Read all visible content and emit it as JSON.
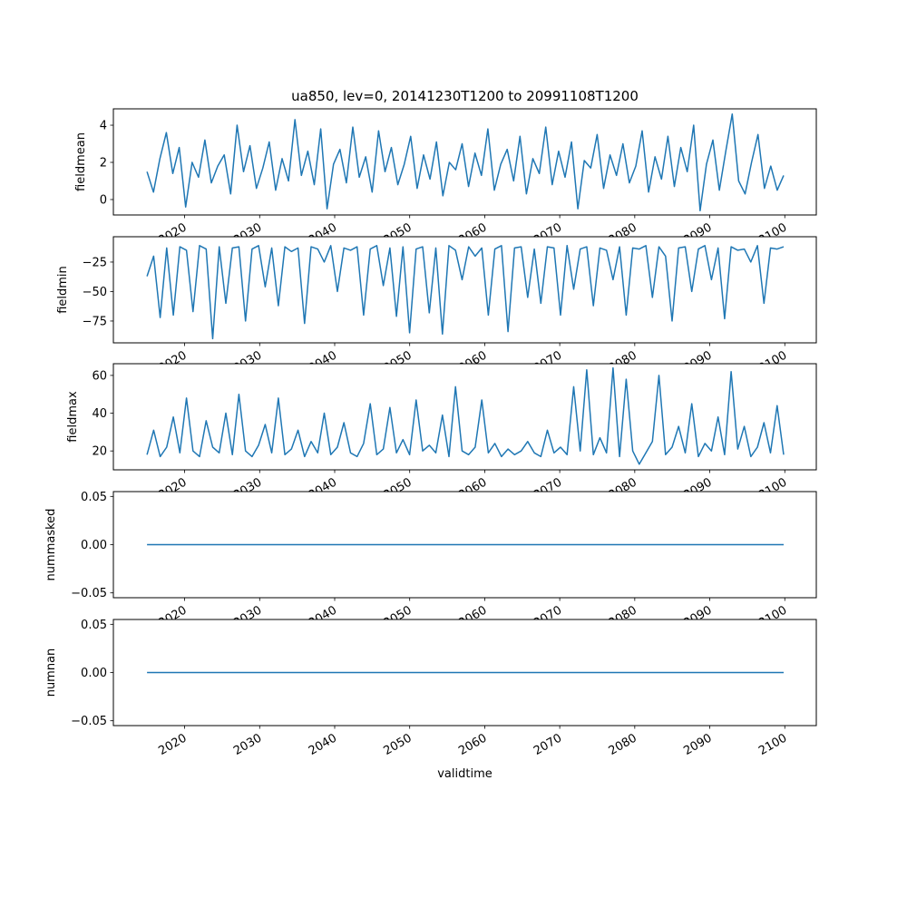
{
  "chart_data": {
    "type": "line",
    "title": "ua850, lev=0, 20141230T1200 to 20991108T1200",
    "xlabel": "validtime",
    "x_start": 2014.99,
    "x_end": 2099.85,
    "xlim": [
      2010.5,
      2104.2
    ],
    "xticks": [
      2020,
      2030,
      2040,
      2050,
      2060,
      2070,
      2080,
      2090,
      2100
    ],
    "xtick_labels": [
      "2020",
      "2030",
      "2040",
      "2050",
      "2060",
      "2070",
      "2080",
      "2090",
      "2100"
    ],
    "line_color": "#1f77b4",
    "grid": false,
    "panels": [
      {
        "ylabel": "fieldmean",
        "ylim": [
          -0.83,
          4.88
        ],
        "yticks": [
          0,
          2,
          4
        ],
        "ytick_labels": [
          "0",
          "2",
          "4"
        ],
        "values": [
          1.5,
          0.4,
          2.2,
          3.6,
          1.4,
          2.8,
          -0.4,
          2.0,
          1.2,
          3.2,
          0.9,
          1.8,
          2.4,
          0.3,
          4.0,
          1.5,
          2.9,
          0.6,
          1.7,
          3.1,
          0.5,
          2.2,
          1.0,
          4.3,
          1.3,
          2.6,
          0.8,
          3.8,
          -0.5,
          1.9,
          2.7,
          0.9,
          3.9,
          1.2,
          2.3,
          0.4,
          3.7,
          1.5,
          2.8,
          0.8,
          1.9,
          3.4,
          0.6,
          2.4,
          1.1,
          3.1,
          0.2,
          2.0,
          1.6,
          3.0,
          0.7,
          2.5,
          1.3,
          3.8,
          0.5,
          1.9,
          2.7,
          1.0,
          3.4,
          0.3,
          2.2,
          1.4,
          3.9,
          0.8,
          2.6,
          1.2,
          3.1,
          -0.5,
          2.1,
          1.7,
          3.5,
          0.6,
          2.4,
          1.3,
          3.0,
          0.9,
          1.8,
          3.7,
          0.4,
          2.3,
          1.1,
          3.4,
          0.7,
          2.8,
          1.5,
          4.0,
          -0.6,
          1.9,
          3.2,
          0.5,
          2.6,
          4.6,
          1.0,
          0.3,
          2.0,
          3.5,
          0.6,
          1.8,
          0.5,
          1.3
        ]
      },
      {
        "ylabel": "fieldmin",
        "ylim": [
          -93.5,
          -3.5
        ],
        "yticks": [
          -25,
          -50,
          -75
        ],
        "ytick_labels": [
          "−25",
          "−50",
          "−75"
        ],
        "values": [
          -37,
          -20,
          -72,
          -13,
          -70,
          -12,
          -15,
          -67,
          -11,
          -14,
          -90,
          -12,
          -60,
          -13,
          -12,
          -75,
          -14,
          -11,
          -46,
          -13,
          -62,
          -12,
          -16,
          -13,
          -77,
          -12,
          -14,
          -25,
          -11,
          -50,
          -13,
          -15,
          -12,
          -70,
          -14,
          -11,
          -45,
          -13,
          -71,
          -12,
          -85,
          -14,
          -12,
          -68,
          -13,
          -86,
          -11,
          -15,
          -40,
          -12,
          -20,
          -13,
          -70,
          -14,
          -11,
          -84,
          -13,
          -12,
          -55,
          -14,
          -60,
          -12,
          -13,
          -70,
          -11,
          -48,
          -14,
          -12,
          -62,
          -13,
          -15,
          -40,
          -12,
          -70,
          -13,
          -14,
          -11,
          -55,
          -12,
          -20,
          -75,
          -13,
          -12,
          -50,
          -14,
          -11,
          -40,
          -13,
          -73,
          -12,
          -15,
          -14,
          -25,
          -11,
          -60,
          -13,
          -14,
          -12
        ]
      },
      {
        "ylabel": "fieldmax",
        "ylim": [
          10,
          66.2
        ],
        "yticks": [
          20,
          40,
          60
        ],
        "ytick_labels": [
          "20",
          "40",
          "60"
        ],
        "values": [
          18,
          31,
          17,
          22,
          38,
          19,
          48,
          20,
          17,
          36,
          22,
          19,
          40,
          18,
          50,
          20,
          17,
          23,
          34,
          19,
          48,
          18,
          21,
          31,
          17,
          25,
          19,
          40,
          18,
          22,
          35,
          19,
          17,
          24,
          45,
          18,
          21,
          43,
          19,
          26,
          18,
          47,
          20,
          23,
          19,
          39,
          17,
          54,
          20,
          18,
          22,
          47,
          19,
          24,
          17,
          21,
          18,
          20,
          25,
          19,
          17,
          31,
          19,
          22,
          18,
          54,
          20,
          63,
          18,
          27,
          19,
          64,
          17,
          58,
          20,
          13,
          19,
          25,
          60,
          18,
          22,
          33,
          19,
          45,
          17,
          24,
          20,
          38,
          18,
          62,
          21,
          33,
          17,
          22,
          35,
          19,
          44,
          18
        ]
      },
      {
        "ylabel": "nummasked",
        "ylim": [
          -0.055,
          0.055
        ],
        "yticks": [
          0.05,
          0,
          -0.05
        ],
        "ytick_labels": [
          "0.05",
          "0.00",
          "−0.05"
        ],
        "values": [
          0,
          0
        ]
      },
      {
        "ylabel": "numnan",
        "ylim": [
          -0.055,
          0.055
        ],
        "yticks": [
          0.05,
          0,
          -0.05
        ],
        "ytick_labels": [
          "0.05",
          "0.00",
          "−0.05"
        ],
        "values": [
          0,
          0
        ]
      }
    ]
  }
}
